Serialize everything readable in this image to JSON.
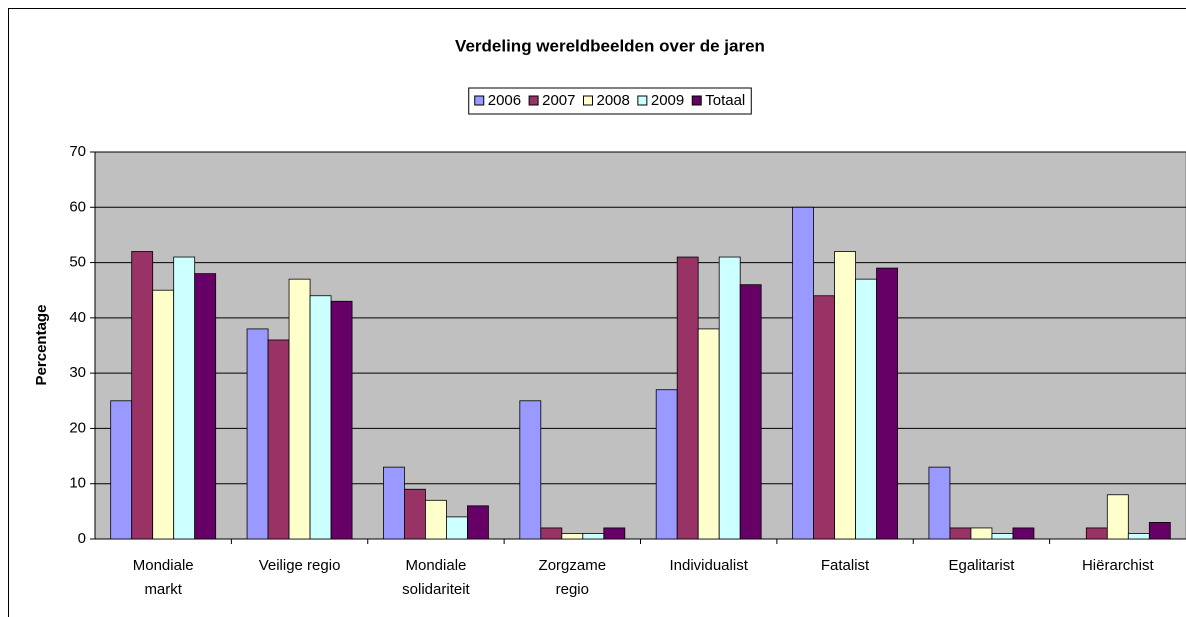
{
  "chart_data": {
    "type": "bar",
    "title": "Verdeling wereldbeelden over de jaren",
    "y_label": "Percentage",
    "categories": [
      [
        "Mondiale",
        "markt"
      ],
      [
        "Veilige regio"
      ],
      [
        "Mondiale",
        "solidariteit"
      ],
      [
        "Zorgzame",
        "regio"
      ],
      [
        "Individualist"
      ],
      [
        "Fatalist"
      ],
      [
        "Egalitarist"
      ],
      [
        "Hiërarchist"
      ]
    ],
    "series": [
      {
        "name": "2006",
        "color": "#9999ff",
        "values": [
          25,
          38,
          13,
          25,
          27,
          60,
          13,
          0
        ]
      },
      {
        "name": "2007",
        "color": "#993366",
        "values": [
          52,
          36,
          9,
          2,
          51,
          44,
          2,
          2
        ]
      },
      {
        "name": "2008",
        "color": "#ffffcc",
        "values": [
          45,
          47,
          7,
          1,
          38,
          52,
          2,
          8
        ]
      },
      {
        "name": "2009",
        "color": "#ccffff",
        "values": [
          51,
          44,
          4,
          1,
          51,
          47,
          1,
          1
        ]
      },
      {
        "name": "Totaal",
        "color": "#660066",
        "values": [
          48,
          43,
          6,
          2,
          46,
          49,
          2,
          3
        ]
      }
    ],
    "ylim": [
      0,
      70
    ],
    "yticks": [
      0,
      10,
      20,
      30,
      40,
      50,
      60,
      70
    ],
    "grid": true,
    "plot_background": "#c0c0c0",
    "legend_position": "top"
  }
}
